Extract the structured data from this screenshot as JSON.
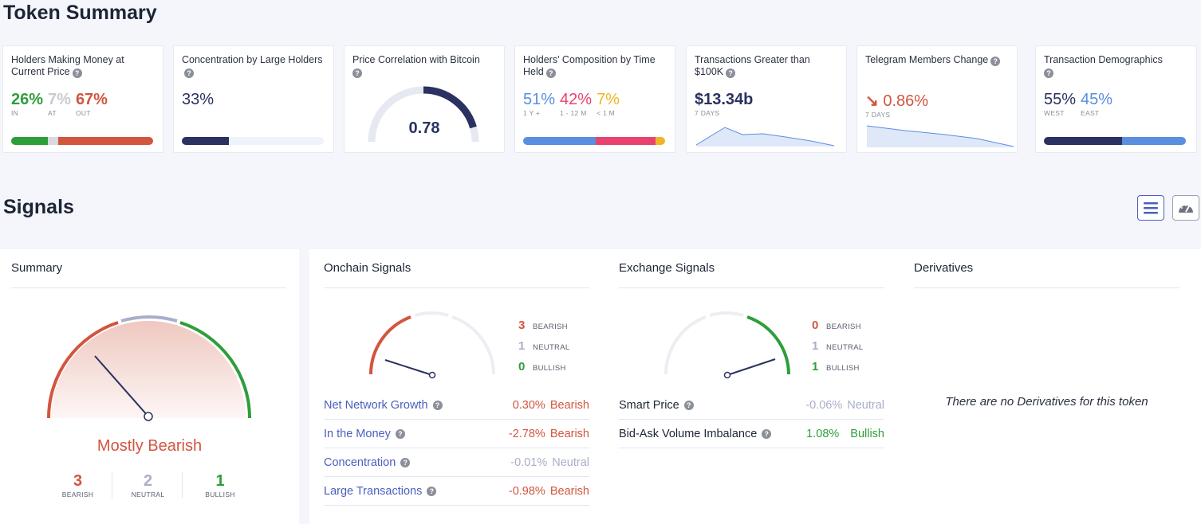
{
  "token_summary": {
    "title": "Token Summary",
    "cards": {
      "holders_money": {
        "title": "Holders Making Money at Current Price",
        "in_val": "26%",
        "in_label": "IN",
        "at_val": "7%",
        "at_label": "AT",
        "out_val": "67%",
        "out_label": "OUT",
        "shares": [
          26,
          7,
          67
        ]
      },
      "concentration": {
        "title": "Concentration by Large Holders",
        "value": "33%",
        "share": 33
      },
      "correlation": {
        "title": "Price Correlation with Bitcoin",
        "value": "0.78",
        "level": 0.78
      },
      "composition": {
        "title": "Holders' Composition by Time Held",
        "v1": "51%",
        "l1": "1 Y +",
        "v2": "42%",
        "l2": "1 - 12 M",
        "v3": "7%",
        "l3": "< 1 M",
        "shares": [
          51,
          42,
          7
        ]
      },
      "transactions": {
        "title": "Transactions Greater than $100K",
        "value": "$13.34b",
        "sub": "7 DAYS"
      },
      "telegram": {
        "title": "Telegram Members Change",
        "value": "0.86%",
        "sub": "7 DAYS"
      },
      "demographics": {
        "title": "Transaction Demographics",
        "v1": "55%",
        "l1": "WEST",
        "v2": "45%",
        "l2": "EAST",
        "shares": [
          55,
          45
        ]
      }
    }
  },
  "signals": {
    "title": "Signals",
    "summary": {
      "title": "Summary",
      "verdict": "Mostly Bearish",
      "bearish_count": "3",
      "bearish_label": "BEARISH",
      "neutral_count": "2",
      "neutral_label": "NEUTRAL",
      "bullish_count": "1",
      "bullish_label": "BULLISH"
    },
    "onchain": {
      "title": "Onchain Signals",
      "bearish": "3",
      "neutral": "1",
      "bullish": "0",
      "bearish_label": "BEARISH",
      "neutral_label": "NEUTRAL",
      "bullish_label": "BULLISH",
      "rows": [
        {
          "label": "Net Network Growth",
          "pct": "0.30%",
          "status": "Bearish"
        },
        {
          "label": "In the Money",
          "pct": "-2.78%",
          "status": "Bearish"
        },
        {
          "label": "Concentration",
          "pct": "-0.01%",
          "status": "Neutral"
        },
        {
          "label": "Large Transactions",
          "pct": "-0.98%",
          "status": "Bearish"
        }
      ]
    },
    "exchange": {
      "title": "Exchange Signals",
      "bearish": "0",
      "neutral": "1",
      "bullish": "1",
      "bearish_label": "BEARISH",
      "neutral_label": "NEUTRAL",
      "bullish_label": "BULLISH",
      "rows": [
        {
          "label": "Smart Price",
          "pct": "-0.06%",
          "status": "Neutral"
        },
        {
          "label": "Bid-Ask Volume Imbalance",
          "pct": "1.08%",
          "status": "Bullish"
        }
      ]
    },
    "derivatives": {
      "title": "Derivatives",
      "empty": "There are no Derivatives for this token"
    }
  },
  "colors": {
    "bearish": "#d2553f",
    "neutral": "#a9aec9",
    "bullish": "#2e9e3a",
    "navy": "#2b3160",
    "blue": "#5a8ee0",
    "pink": "#e8436f",
    "gold": "#f0b429"
  }
}
